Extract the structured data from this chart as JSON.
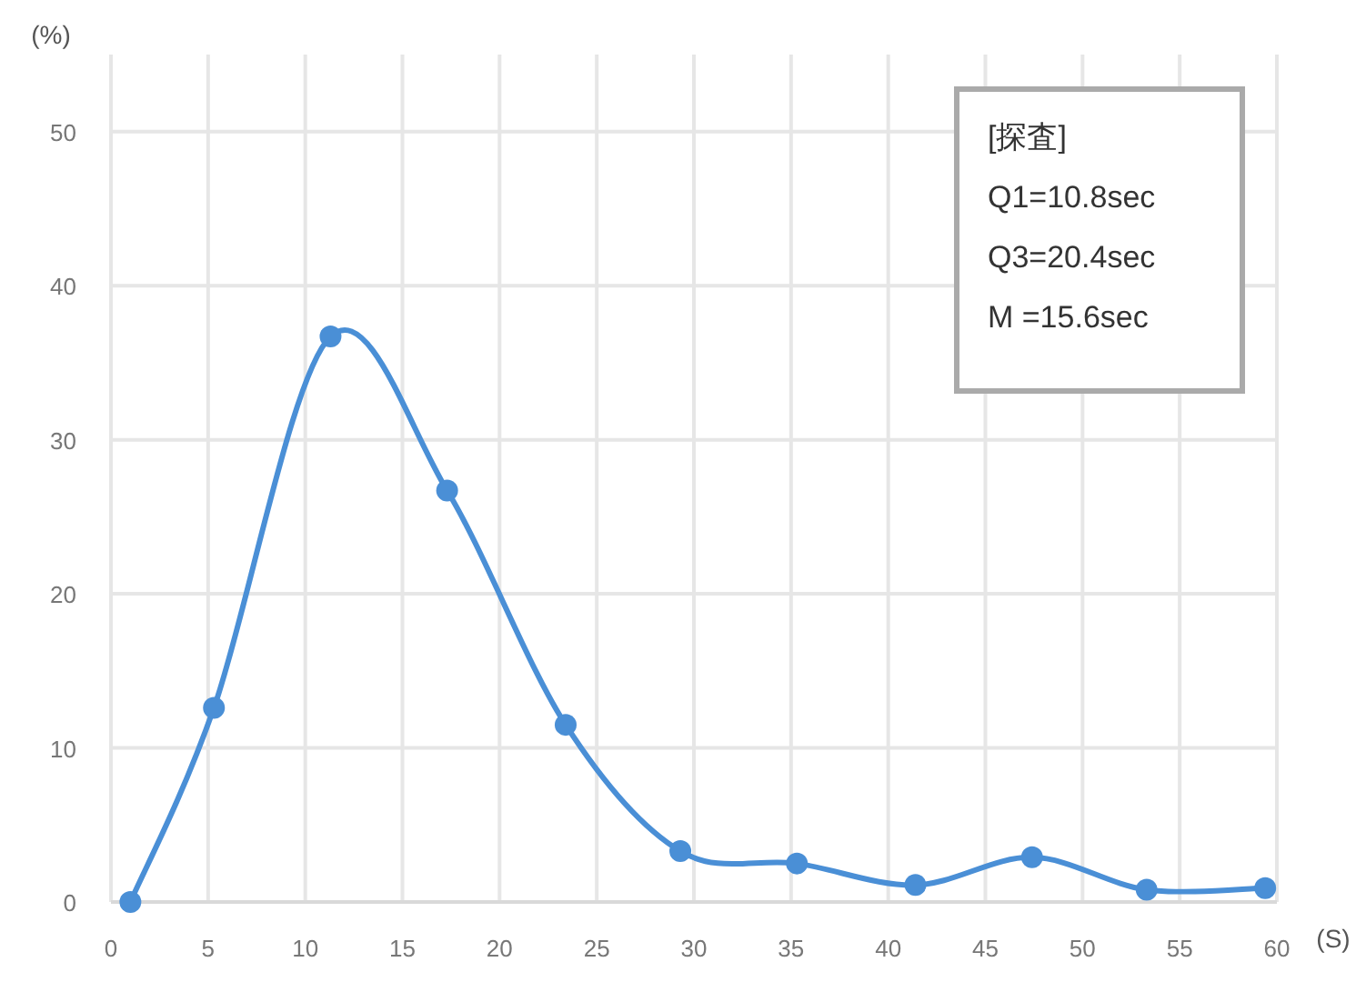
{
  "chart_data": {
    "type": "line",
    "xlabel": "(S)",
    "ylabel": "(%)",
    "x": [
      1,
      5.3,
      11.3,
      17.3,
      23.4,
      29.3,
      35.3,
      41.4,
      47.4,
      53.3,
      59.4
    ],
    "series": [
      {
        "color": "#4a8fd6",
        "values": [
          0,
          12.6,
          36.7,
          26.7,
          11.5,
          3.3,
          2.5,
          1.1,
          2.9,
          0.8,
          0.9
        ]
      }
    ],
    "xlim": [
      0,
      60
    ],
    "xticks": [
      0,
      5,
      10,
      15,
      20,
      25,
      30,
      35,
      40,
      45,
      50,
      55,
      60
    ],
    "ylim": [
      0,
      55
    ],
    "yticks": [
      0,
      10,
      20,
      30,
      40,
      50
    ],
    "grid": true,
    "marker": "circle",
    "line_style": "solid",
    "annotations": [
      "[探査]",
      "Q1=10.8sec",
      "Q3=20.4sec",
      "M =15.6sec"
    ]
  }
}
